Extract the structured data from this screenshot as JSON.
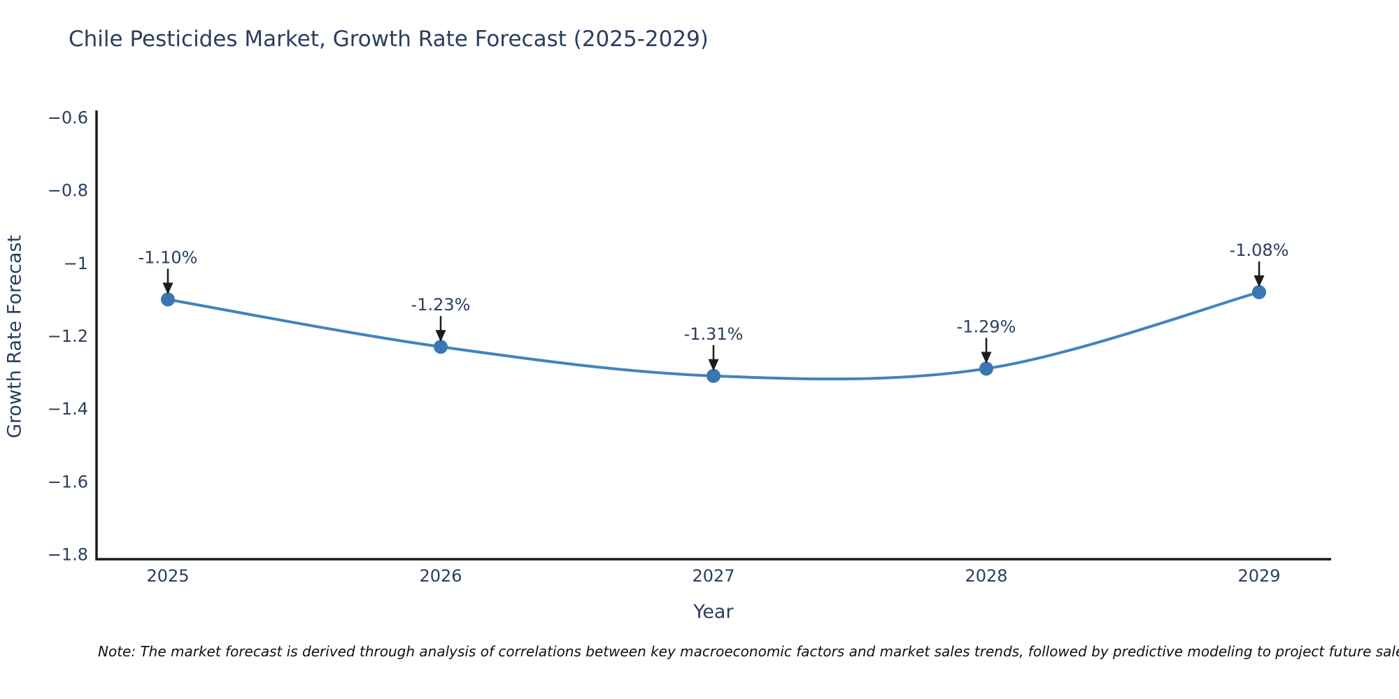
{
  "title": "Chile Pesticides Market, Growth Rate Forecast (2025-2029)",
  "note": "Note: The market forecast is derived through analysis of correlations between key macroeconomic factors and market sales trends, followed by predictive modeling to project future sales",
  "chart_data": {
    "type": "line",
    "title": "Chile Pesticides Market, Growth Rate Forecast (2025-2029)",
    "xlabel": "Year",
    "ylabel": "Growth Rate Forecast",
    "categories": [
      "2025",
      "2026",
      "2027",
      "2028",
      "2029"
    ],
    "values": [
      -1.1,
      -1.23,
      -1.31,
      -1.29,
      -1.08
    ],
    "point_labels": [
      "-1.10%",
      "-1.23%",
      "-1.31%",
      "-1.29%",
      "-1.08%"
    ],
    "ylim": [
      -1.8,
      -0.6
    ],
    "yticks": [
      -0.6,
      -0.8,
      -1.0,
      -1.2,
      -1.4,
      -1.6,
      -1.8
    ],
    "ytick_labels": [
      "−0.6",
      "−0.8",
      "−1",
      "−1.2",
      "−1.4",
      "−1.6",
      "−1.8"
    ],
    "grid": false,
    "legend": "none",
    "line_shape": "spline",
    "line_color": "#4383bc",
    "marker_color": "#3b76b3",
    "axis_color": "#1a1a1a",
    "tick_text_color": "#2a3f5f",
    "annotation_text_color": "#2a3f5f",
    "annotation_arrow_color": "#1c1c1c"
  }
}
